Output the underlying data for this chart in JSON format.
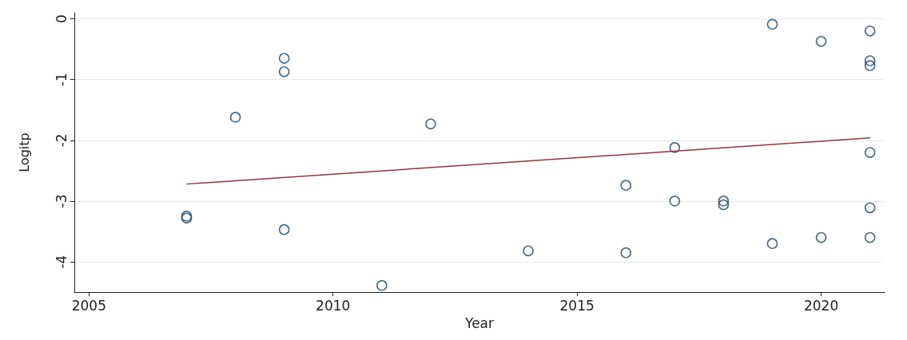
{
  "chart_data": {
    "type": "scatter",
    "xlabel": "Year",
    "ylabel": "Logitp",
    "xlim": [
      2004.7,
      2021.3
    ],
    "ylim": [
      -4.5,
      0.1
    ],
    "xticks": [
      2005,
      2010,
      2015,
      2020
    ],
    "yticks": [
      -4,
      -3,
      -2,
      -1,
      0
    ],
    "grid": "y",
    "series": [
      {
        "marker": "circle",
        "color": "#1a476f",
        "x": [
          2007,
          2007,
          2008,
          2009,
          2009,
          2009,
          2011,
          2012,
          2014,
          2016,
          2016,
          2017,
          2017,
          2018,
          2018,
          2019,
          2019,
          2020,
          2020,
          2021,
          2021,
          2021,
          2021,
          2021,
          2021
        ],
        "values": [
          -3.25,
          -3.28,
          -1.62,
          -0.65,
          -0.87,
          -3.47,
          -4.39,
          -1.73,
          -3.82,
          -2.74,
          -3.85,
          -2.12,
          -3.0,
          -3.0,
          -3.06,
          -0.09,
          -3.7,
          -0.37,
          -3.6,
          -0.2,
          -0.69,
          -0.77,
          -2.2,
          -3.11,
          -3.6
        ]
      },
      {
        "type": "line",
        "color": "#90353b",
        "x": [
          2007,
          2021
        ],
        "values": [
          -2.72,
          -1.96
        ]
      }
    ]
  }
}
